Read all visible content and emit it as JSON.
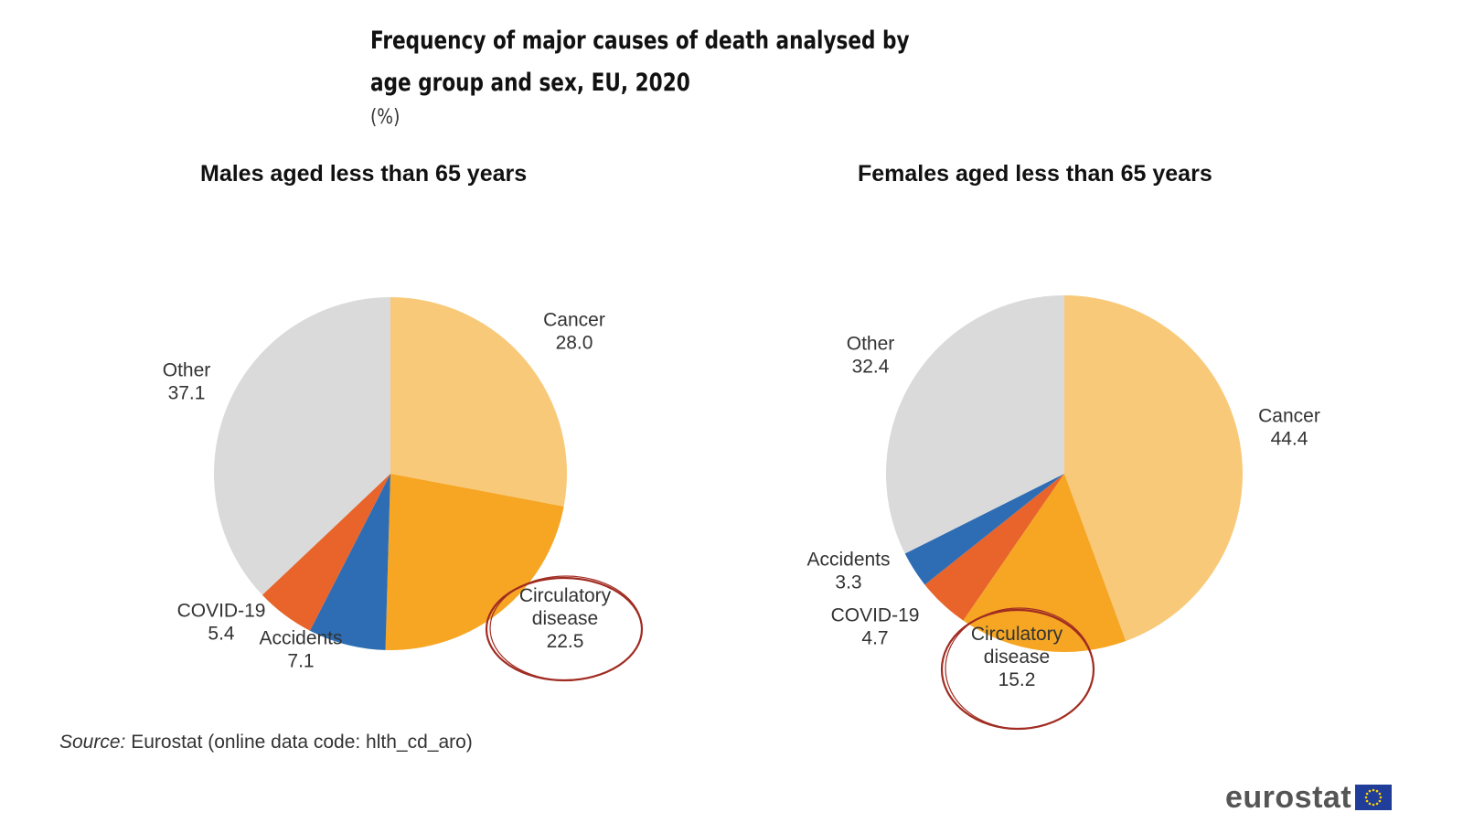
{
  "title": "Frequency of major causes of death analysed by age group and sex, EU, 2020",
  "unit": "(%)",
  "source_label": "Source:",
  "source_text": "Eurostat (online data code: hlth_cd_aro)",
  "logo_text": "eurostat",
  "colors": {
    "Cancer": "#F9C97A",
    "Circulatory disease": "#F6A623",
    "COVID-19": "#E8642A",
    "Accidents": "#2E6DB4",
    "Other": "#DADADA",
    "highlight": "#A02C22"
  },
  "chart_data": [
    {
      "type": "pie",
      "title": "Males aged less than 65 years",
      "categories": [
        "Cancer",
        "Circulatory disease",
        "Accidents",
        "COVID-19",
        "Other"
      ],
      "values": [
        28.0,
        22.5,
        7.1,
        5.4,
        37.1
      ],
      "label_lines": [
        [
          "Cancer",
          "28.0"
        ],
        [
          "Circulatory",
          "disease",
          "22.5"
        ],
        [
          "Accidents",
          "7.1"
        ],
        [
          "COVID-19",
          "5.4"
        ],
        [
          "Other",
          "37.1"
        ]
      ],
      "highlighted": "Circulatory disease"
    },
    {
      "type": "pie",
      "title": "Females aged less than 65 years",
      "categories": [
        "Cancer",
        "Circulatory disease",
        "COVID-19",
        "Accidents",
        "Other"
      ],
      "values": [
        44.4,
        15.2,
        4.7,
        3.3,
        32.4
      ],
      "label_lines": [
        [
          "Cancer",
          "44.4"
        ],
        [
          "Circulatory",
          "disease",
          "15.2"
        ],
        [
          "COVID-19",
          "4.7"
        ],
        [
          "Accidents",
          "3.3"
        ],
        [
          "Other",
          "32.4"
        ]
      ],
      "highlighted": "Circulatory disease"
    }
  ]
}
